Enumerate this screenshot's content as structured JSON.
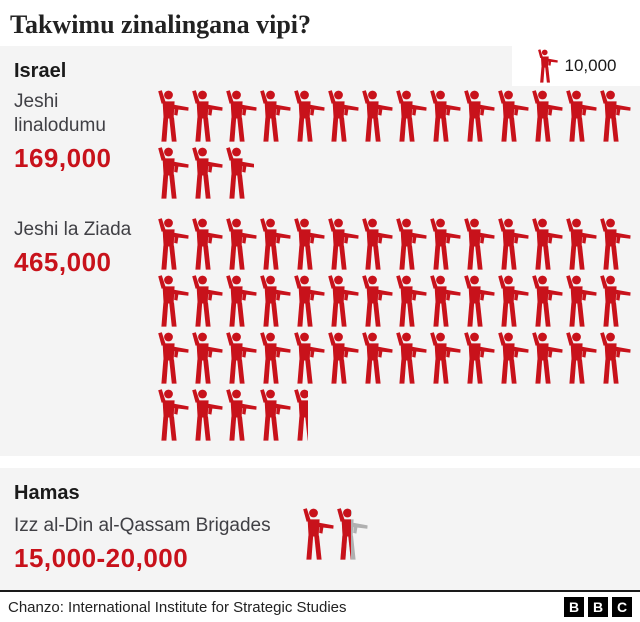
{
  "title": "Takwimu zinalingana vipi?",
  "legend": {
    "label": "10,000"
  },
  "israel": {
    "heading": "Israel",
    "standing": {
      "label": "Jeshi linalodumu",
      "value": "169,000"
    },
    "reserve": {
      "label": "Jeshi la Ziada",
      "value": "465,000"
    }
  },
  "hamas": {
    "heading": "Hamas",
    "label": "Izz al-Din al-Qassam Brigades",
    "value": "15,000-20,000"
  },
  "footer": {
    "source": "Chanzo: International Institute for Strategic Studies",
    "logo_letters": [
      "B",
      "B",
      "C"
    ]
  },
  "colors": {
    "red": "#c8121b",
    "icon_gray": "#b0b0b0",
    "section_bg": "#f4f4f4"
  },
  "chart_data": {
    "type": "pictogram",
    "title": "Takwimu zinalingana vipi?",
    "unit_per_icon": 10000,
    "legend_label": "10,000",
    "icon": "soldier-with-rifle",
    "groups": [
      {
        "id": "standing",
        "country": "Israel",
        "label": "Jeshi linalodumu",
        "value": 169000,
        "value_label": "169,000",
        "icons_red": 16.9,
        "icons_per_row": 14
      },
      {
        "id": "reserve",
        "country": "Israel",
        "label": "Jeshi la Ziada",
        "value": 465000,
        "value_label": "465,000",
        "icons_red": 46.5,
        "icons_per_row": 14
      },
      {
        "id": "hamas",
        "country": "Hamas",
        "label": "Izz al-Din al-Qassam Brigades",
        "value_min": 15000,
        "value_max": 20000,
        "value_label": "15,000-20,000",
        "icons_red": 1.5,
        "icons_gray": 0.5,
        "icons_per_row": 14
      }
    ]
  }
}
